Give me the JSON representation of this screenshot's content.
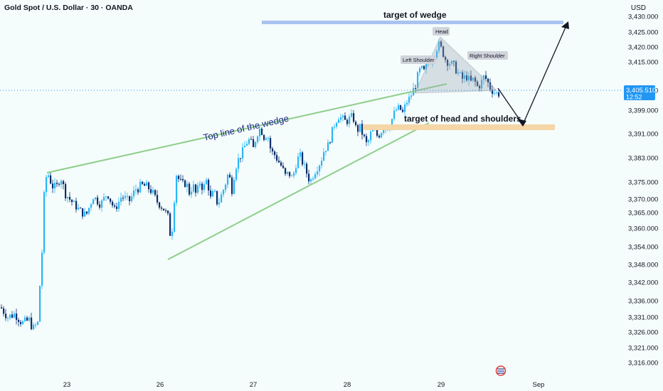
{
  "header": {
    "symbol_title": "Gold Spot / U.S. Dollar · 30 · OANDA",
    "currency": "USD"
  },
  "price_marker": {
    "price": "3,405.510",
    "countdown": "12:52",
    "value": 3405.51
  },
  "annotations": {
    "target_of_wedge": "target of wedge",
    "top_line_label": "Top line of the wedge",
    "target_hs": "target of head and shoulders",
    "head": "Head",
    "left_shoulder": "Left Shoulder",
    "right_shoulder": "Right Shoulder"
  },
  "colors": {
    "up": "#29b6f6",
    "down": "#0d2e6b",
    "wedge_line": "#8ecf8a",
    "target_band_blue": "#a9c3f0",
    "target_band_orange": "#f5d6a6",
    "label_text": "#1f2a8a",
    "price_marker_bg": "#2196f3"
  },
  "chart_data": {
    "type": "candlestick",
    "title": "Gold Spot / U.S. Dollar · 30 · OANDA",
    "y_ticks": [
      "3,430.000",
      "3,425.000",
      "3,420.000",
      "3,415.000",
      "3,407.000",
      "3,399.000",
      "3,391.000",
      "3,383.000",
      "3,375.000",
      "3,370.000",
      "3,365.000",
      "3,360.000",
      "3,354.000",
      "3,348.000",
      "3,342.000",
      "3,336.000",
      "3,331.000",
      "3,326.000",
      "3,321.000",
      "3,316.000"
    ],
    "x_ticks": [
      "23",
      "26",
      "27",
      "28",
      "29",
      "Sep"
    ],
    "ylim": [
      3314,
      3432
    ],
    "close_path": [
      [
        0,
        3334
      ],
      [
        10,
        3331
      ],
      [
        20,
        3332
      ],
      [
        30,
        3329
      ],
      [
        40,
        3330
      ],
      [
        45,
        3327
      ],
      [
        52,
        3329
      ],
      [
        56,
        3345
      ],
      [
        60,
        3368
      ],
      [
        63,
        3376
      ],
      [
        66,
        3378
      ],
      [
        72,
        3374
      ],
      [
        78,
        3373
      ],
      [
        84,
        3377
      ],
      [
        90,
        3372
      ],
      [
        100,
        3369
      ],
      [
        110,
        3366
      ],
      [
        120,
        3364
      ],
      [
        130,
        3371
      ],
      [
        140,
        3368
      ],
      [
        150,
        3372
      ],
      [
        160,
        3366
      ],
      [
        170,
        3371
      ],
      [
        180,
        3369
      ],
      [
        190,
        3373
      ],
      [
        200,
        3374
      ],
      [
        210,
        3373
      ],
      [
        220,
        3369
      ],
      [
        230,
        3366
      ],
      [
        236,
        3363
      ],
      [
        239,
        3356
      ],
      [
        242,
        3362
      ],
      [
        246,
        3378
      ],
      [
        250,
        3376
      ],
      [
        255,
        3374
      ],
      [
        260,
        3375
      ],
      [
        265,
        3372
      ],
      [
        270,
        3374
      ],
      [
        275,
        3371
      ],
      [
        280,
        3375
      ],
      [
        285,
        3373
      ],
      [
        290,
        3376
      ],
      [
        295,
        3370
      ],
      [
        300,
        3372
      ],
      [
        305,
        3368
      ],
      [
        310,
        3371
      ],
      [
        315,
        3374
      ],
      [
        320,
        3378
      ],
      [
        325,
        3373
      ],
      [
        330,
        3380
      ],
      [
        335,
        3383
      ],
      [
        340,
        3385
      ],
      [
        345,
        3388
      ],
      [
        350,
        3389
      ],
      [
        355,
        3386
      ],
      [
        360,
        3391
      ],
      [
        365,
        3393
      ],
      [
        370,
        3390
      ],
      [
        375,
        3391
      ],
      [
        380,
        3385
      ],
      [
        385,
        3384
      ],
      [
        390,
        3382
      ],
      [
        395,
        3380
      ],
      [
        400,
        3377
      ],
      [
        405,
        3378
      ],
      [
        410,
        3376
      ],
      [
        415,
        3381
      ],
      [
        420,
        3384
      ],
      [
        425,
        3381
      ],
      [
        430,
        3378
      ],
      [
        435,
        3375
      ],
      [
        440,
        3378
      ],
      [
        445,
        3380
      ],
      [
        450,
        3382
      ],
      [
        455,
        3386
      ],
      [
        460,
        3387
      ],
      [
        465,
        3391
      ],
      [
        470,
        3395
      ],
      [
        475,
        3397
      ],
      [
        480,
        3396
      ],
      [
        485,
        3395
      ],
      [
        490,
        3396
      ],
      [
        495,
        3397
      ],
      [
        500,
        3392
      ],
      [
        505,
        3393
      ],
      [
        510,
        3390
      ],
      [
        515,
        3387
      ],
      [
        520,
        3391
      ],
      [
        525,
        3392
      ],
      [
        530,
        3390
      ],
      [
        535,
        3392
      ],
      [
        540,
        3394
      ],
      [
        545,
        3393
      ],
      [
        550,
        3396
      ],
      [
        555,
        3399
      ],
      [
        560,
        3400
      ],
      [
        565,
        3398
      ],
      [
        570,
        3402
      ],
      [
        575,
        3404
      ],
      [
        580,
        3407
      ],
      [
        585,
        3410
      ],
      [
        590,
        3413
      ],
      [
        595,
        3412
      ],
      [
        600,
        3415
      ],
      [
        605,
        3416
      ],
      [
        610,
        3418
      ],
      [
        615,
        3421
      ],
      [
        620,
        3419
      ],
      [
        625,
        3416
      ],
      [
        630,
        3415
      ],
      [
        635,
        3414
      ],
      [
        640,
        3413
      ],
      [
        645,
        3411
      ],
      [
        650,
        3410
      ],
      [
        655,
        3411
      ],
      [
        660,
        3409
      ],
      [
        665,
        3410
      ],
      [
        670,
        3408
      ],
      [
        675,
        3409
      ],
      [
        680,
        3411
      ],
      [
        685,
        3409
      ],
      [
        690,
        3407
      ],
      [
        695,
        3406
      ],
      [
        700,
        3405.5
      ]
    ],
    "grid": false
  }
}
